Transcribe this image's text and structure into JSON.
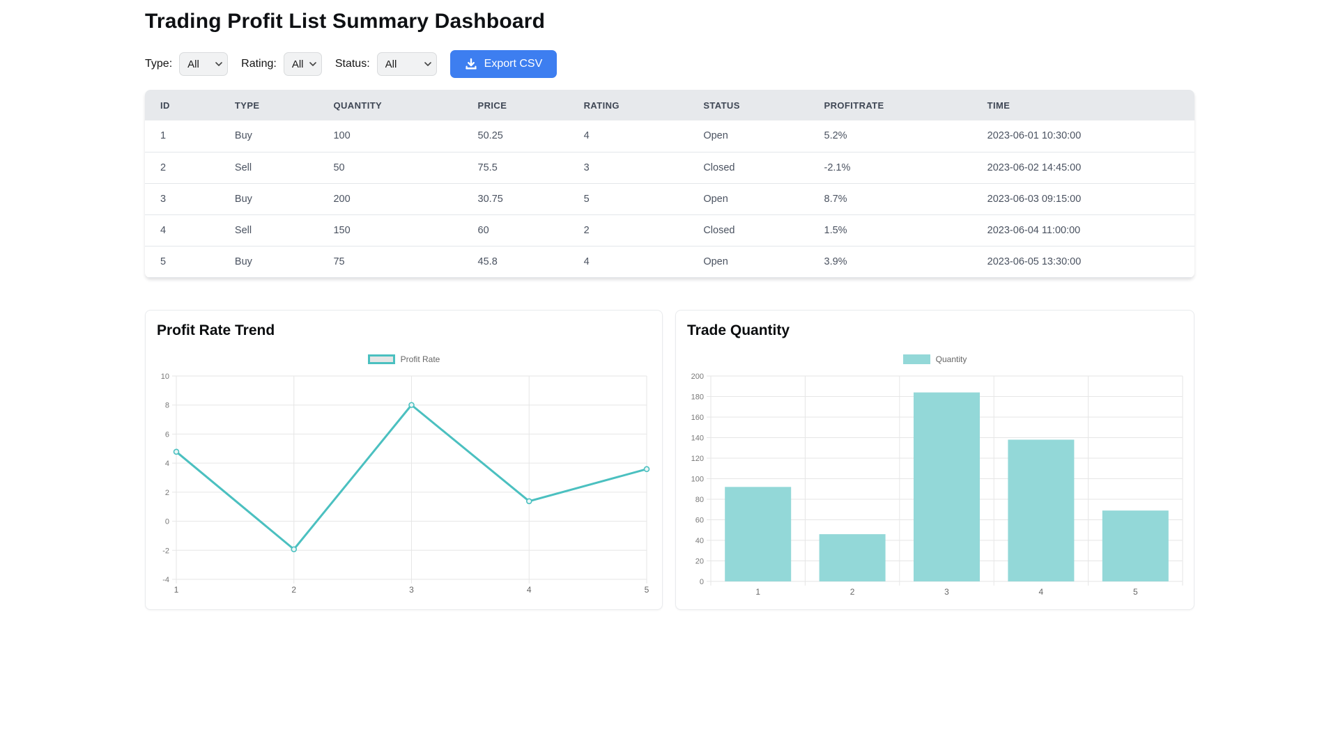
{
  "header": {
    "title": "Trading Profit List Summary Dashboard"
  },
  "filters": {
    "type": {
      "label": "Type:",
      "value": "All"
    },
    "rating": {
      "label": "Rating:",
      "value": "All"
    },
    "status": {
      "label": "Status:",
      "value": "All"
    },
    "export_label": "Export CSV"
  },
  "table": {
    "columns": [
      "ID",
      "TYPE",
      "QUANTITY",
      "PRICE",
      "RATING",
      "STATUS",
      "PROFITRATE",
      "TIME"
    ],
    "rows": [
      [
        "1",
        "Buy",
        "100",
        "50.25",
        "4",
        "Open",
        "5.2%",
        "2023-06-01 10:30:00"
      ],
      [
        "2",
        "Sell",
        "50",
        "75.5",
        "3",
        "Closed",
        "-2.1%",
        "2023-06-02 14:45:00"
      ],
      [
        "3",
        "Buy",
        "200",
        "30.75",
        "5",
        "Open",
        "8.7%",
        "2023-06-03 09:15:00"
      ],
      [
        "4",
        "Sell",
        "150",
        "60",
        "2",
        "Closed",
        "1.5%",
        "2023-06-04 11:00:00"
      ],
      [
        "5",
        "Buy",
        "75",
        "45.8",
        "4",
        "Open",
        "3.9%",
        "2023-06-05 13:30:00"
      ]
    ]
  },
  "chart_data": [
    {
      "type": "line",
      "title": "Profit Rate Trend",
      "categories": [
        "1",
        "2",
        "3",
        "4",
        "5"
      ],
      "series": [
        {
          "name": "Profit Rate",
          "values": [
            5.2,
            -2.1,
            8.7,
            1.5,
            3.9
          ]
        }
      ],
      "xlabel": "",
      "ylabel": "",
      "ylim": [
        -4,
        10
      ],
      "ytick_step": 2,
      "grid": true,
      "legend_position": "top",
      "line_color": "#4BC0C0",
      "point_fill": "#e9f6f6",
      "render_progress": 0.92
    },
    {
      "type": "bar",
      "title": "Trade Quantity",
      "categories": [
        "1",
        "2",
        "3",
        "4",
        "5"
      ],
      "series": [
        {
          "name": "Quantity",
          "values": [
            100,
            50,
            200,
            150,
            75
          ]
        }
      ],
      "xlabel": "",
      "ylabel": "",
      "ylim": [
        0,
        200
      ],
      "ytick_step": 20,
      "grid": true,
      "legend_position": "top",
      "bar_color": "#93D8D8",
      "render_progress": 0.92
    }
  ],
  "colors": {
    "primary_button": "#3D7EF0",
    "accent_teal": "#4BC0C0",
    "bar_fill": "#93D8D8",
    "table_header_bg": "#e7e9ec",
    "grid_line": "#e6e6e6"
  }
}
